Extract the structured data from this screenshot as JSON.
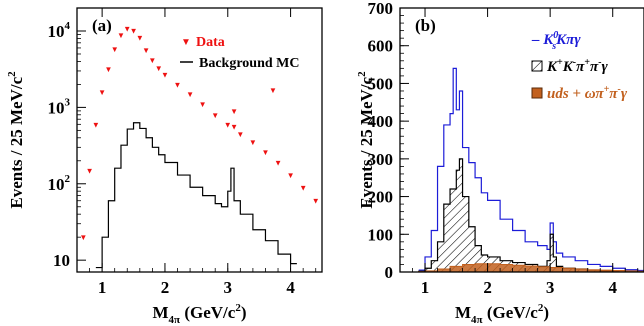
{
  "chart_data": [
    {
      "type": "line",
      "panel_label": "(a)",
      "ylabel": "Events / 25 MeV/c",
      "ylabel_sup": "2",
      "xlabel_main": "M",
      "xlabel_sub": "4π",
      "xlabel_unit": " (GeV/c",
      "xlabel_sup": "2",
      "xlabel_close": ")",
      "xlim": [
        0.6,
        4.5
      ],
      "ylim": [
        7,
        20000
      ],
      "yscale": "log",
      "xticks": [
        1,
        2,
        3,
        4
      ],
      "xtick_labels": [
        "1",
        "2",
        "3",
        "4"
      ],
      "yticks": [
        10,
        100,
        1000,
        10000
      ],
      "ytick_labels": [
        {
          "base": "10",
          "exp": ""
        },
        {
          "base": "10",
          "exp": "2"
        },
        {
          "base": "10",
          "exp": "3"
        },
        {
          "base": "10",
          "exp": "4"
        }
      ],
      "legend_position": "top-right",
      "series": [
        {
          "name": "Data",
          "style": "markers",
          "color": "#ee1111",
          "x": [
            0.7,
            0.8,
            0.9,
            1.0,
            1.1,
            1.2,
            1.3,
            1.4,
            1.5,
            1.6,
            1.7,
            1.8,
            1.9,
            2.0,
            2.2,
            2.4,
            2.6,
            2.8,
            3.0,
            3.1,
            3.2,
            3.4,
            3.6,
            3.8,
            4.0,
            4.2,
            4.4
          ],
          "values": [
            20,
            150,
            600,
            1600,
            3200,
            5800,
            8800,
            10800,
            10200,
            8200,
            5600,
            4200,
            3300,
            2700,
            2000,
            1500,
            1100,
            800,
            600,
            560,
            450,
            350,
            260,
            190,
            130,
            90,
            60
          ]
        },
        {
          "name": "Background MC",
          "style": "step",
          "color": "#000000",
          "x": [
            0.9,
            1.0,
            1.1,
            1.2,
            1.3,
            1.4,
            1.5,
            1.6,
            1.7,
            1.8,
            1.9,
            2.0,
            2.2,
            2.4,
            2.6,
            2.8,
            2.9,
            3.0,
            3.05,
            3.1,
            3.2,
            3.4,
            3.6,
            3.8,
            4.0
          ],
          "values": [
            8,
            20,
            60,
            160,
            320,
            520,
            630,
            530,
            400,
            300,
            240,
            190,
            130,
            90,
            70,
            55,
            50,
            80,
            160,
            60,
            40,
            25,
            18,
            12,
            9
          ]
        }
      ],
      "annotations": [
        {
          "x": 3.1,
          "y": 900,
          "marker": "▼"
        },
        {
          "x": 3.72,
          "y": 1700,
          "marker": "▼"
        }
      ]
    },
    {
      "type": "line",
      "panel_label": "(b)",
      "ylabel": "Events / 25 MeV/c",
      "ylabel_sup": "2",
      "xlabel_main": "M",
      "xlabel_sub": "4π",
      "xlabel_unit": " (GeV/c",
      "xlabel_sup": "2",
      "xlabel_close": ")",
      "xlim": [
        0.6,
        4.5
      ],
      "ylim": [
        0,
        700
      ],
      "yscale": "linear",
      "xticks": [
        1,
        2,
        3,
        4
      ],
      "xtick_labels": [
        "1",
        "2",
        "3",
        "4"
      ],
      "yticks": [
        0,
        100,
        200,
        300,
        400,
        500,
        600,
        700
      ],
      "ytick_labels": [
        "0",
        "100",
        "200",
        "300",
        "400",
        "500",
        "600",
        "700"
      ],
      "legend_position": "top-right",
      "series": [
        {
          "name": "K_s^0 Kπγ",
          "legend": {
            "pre": "– K",
            "sub": "s",
            "sup": "0",
            "post": "Kπγ"
          },
          "style": "step",
          "color": "#1c1cd8",
          "x": [
            0.9,
            1.0,
            1.1,
            1.2,
            1.3,
            1.4,
            1.45,
            1.5,
            1.55,
            1.6,
            1.7,
            1.8,
            1.9,
            2.0,
            2.2,
            2.4,
            2.6,
            2.8,
            2.95,
            3.0,
            3.05,
            3.1,
            3.2,
            3.4,
            3.6,
            3.8,
            4.0,
            4.2,
            4.4
          ],
          "values": [
            5,
            40,
            110,
            280,
            390,
            420,
            540,
            430,
            480,
            330,
            290,
            250,
            210,
            190,
            140,
            110,
            80,
            70,
            60,
            130,
            80,
            50,
            40,
            30,
            20,
            15,
            10,
            6,
            4
          ]
        },
        {
          "name": "K+K-π+π-γ",
          "legend": {
            "pre": "K",
            "sup1": "+",
            "mid": "K",
            "sup2": "-",
            "mid2": "π",
            "sup3": "+",
            "mid3": "π",
            "sup4": "-",
            "post": "γ"
          },
          "style": "hatched",
          "color": "#000000",
          "x": [
            0.9,
            1.0,
            1.1,
            1.2,
            1.3,
            1.4,
            1.5,
            1.55,
            1.6,
            1.7,
            1.8,
            1.9,
            2.0,
            2.2,
            2.4,
            2.6,
            2.8,
            2.95,
            3.0,
            3.05,
            3.1,
            3.2,
            3.4,
            3.6,
            3.8,
            4.0
          ],
          "values": [
            2,
            10,
            30,
            80,
            180,
            220,
            270,
            300,
            200,
            120,
            70,
            45,
            40,
            30,
            25,
            20,
            15,
            30,
            100,
            40,
            15,
            10,
            8,
            5,
            3,
            2
          ]
        },
        {
          "name": "uds + ωπ+π-γ",
          "legend": {
            "pre": "uds + ωπ",
            "sup1": "+",
            "mid": "π",
            "sup2": "-",
            "post": "γ"
          },
          "style": "filled",
          "color": "#c2601e",
          "x": [
            0.9,
            1.0,
            1.2,
            1.4,
            1.6,
            1.8,
            2.0,
            2.2,
            2.4,
            2.6,
            2.8,
            3.0,
            3.2,
            3.4,
            3.6,
            3.8,
            4.0,
            4.2,
            4.4
          ],
          "values": [
            1,
            3,
            8,
            15,
            20,
            22,
            22,
            20,
            18,
            16,
            14,
            12,
            10,
            8,
            6,
            5,
            4,
            3,
            2
          ]
        }
      ]
    }
  ]
}
